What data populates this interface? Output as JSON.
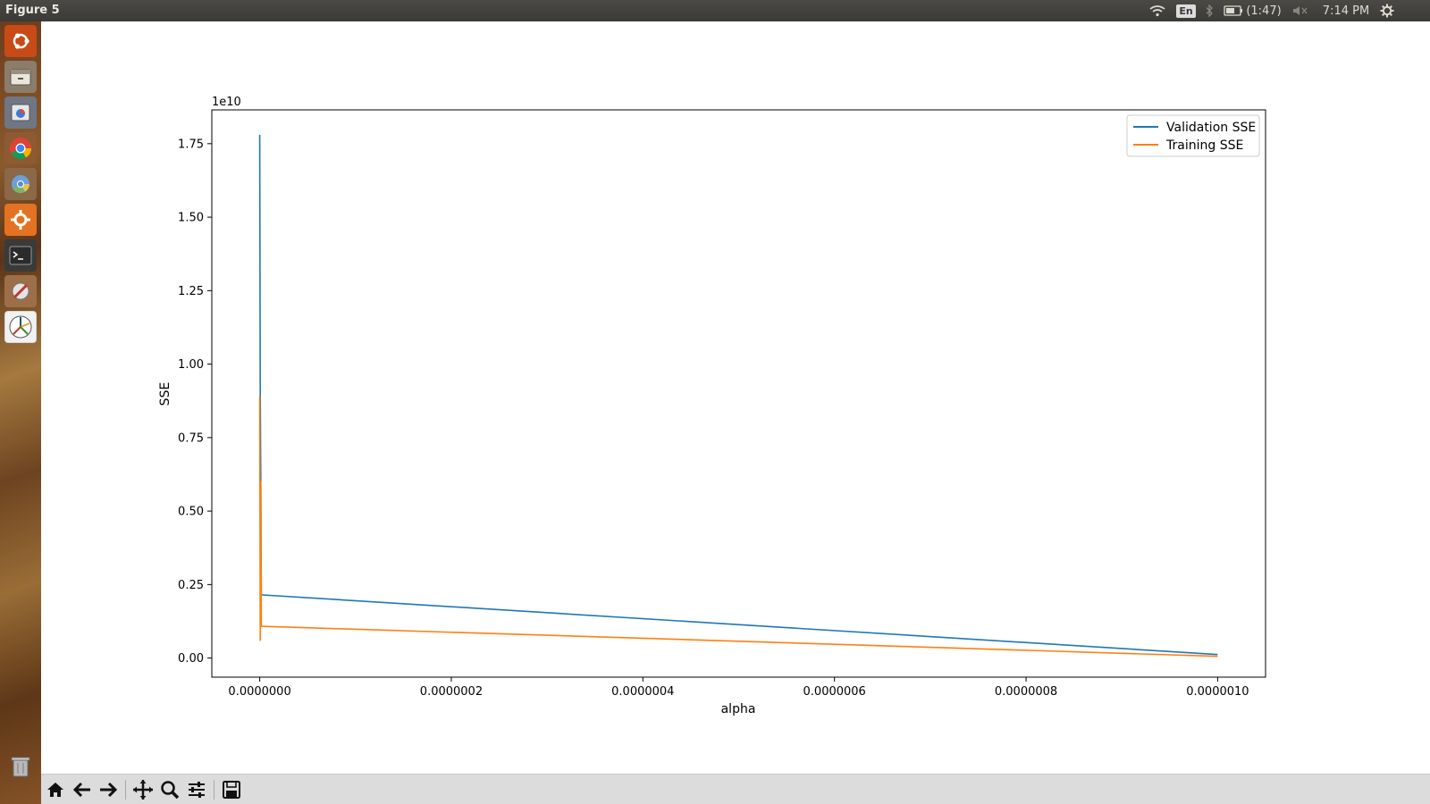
{
  "window": {
    "title": "Figure 5"
  },
  "tray": {
    "language": "En",
    "battery_text": "(1:47)",
    "clock": "7:14 PM",
    "icons": [
      "wifi-icon",
      "bluetooth-icon",
      "battery-icon",
      "volume-muted-icon",
      "power-gear-icon"
    ]
  },
  "launcher": {
    "items": [
      "ubuntu-dash-icon",
      "files-icon",
      "chromium-icon",
      "chrome-icon",
      "chrome-alt-icon",
      "system-settings-icon",
      "terminal-icon",
      "software-updater-icon",
      "matplotlib-figure-icon",
      "trash-icon"
    ]
  },
  "toolbar": {
    "items": [
      "home-icon",
      "back-icon",
      "forward-icon",
      "pan-icon",
      "zoom-icon",
      "configure-subplots-icon",
      "save-icon"
    ]
  },
  "chart_data": {
    "type": "line",
    "xlabel": "alpha",
    "ylabel": "SSE",
    "y_offset_text": "1e10",
    "xlim": [
      -5e-08,
      1.05e-06
    ],
    "ylim": [
      -0.065,
      1.865
    ],
    "x_ticks": [
      0.0,
      2e-07,
      4e-07,
      6e-07,
      8e-07,
      1e-06
    ],
    "x_tick_labels": [
      "0.0000000",
      "0.0000002",
      "0.0000004",
      "0.0000006",
      "0.0000008",
      "0.0000010"
    ],
    "y_ticks": [
      0.0,
      0.25,
      0.5,
      0.75,
      1.0,
      1.25,
      1.5,
      1.75
    ],
    "y_tick_labels": [
      "0.00",
      "0.25",
      "0.50",
      "0.75",
      "1.00",
      "1.25",
      "1.50",
      "1.75"
    ],
    "legend_position": "top-right",
    "series": [
      {
        "name": "Validation SSE",
        "color": "#1f77b4",
        "x": [
          0.0,
          0.0,
          0.0,
          0.0,
          1e-06
        ],
        "y": [
          1.78,
          0.9,
          0.6,
          0.215,
          0.012
        ]
      },
      {
        "name": "Training SSE",
        "color": "#ff7f0e",
        "x": [
          0.0,
          0.0,
          0.0,
          0.0,
          1e-06
        ],
        "y": [
          0.89,
          0.06,
          0.6,
          0.108,
          0.006
        ]
      }
    ]
  }
}
